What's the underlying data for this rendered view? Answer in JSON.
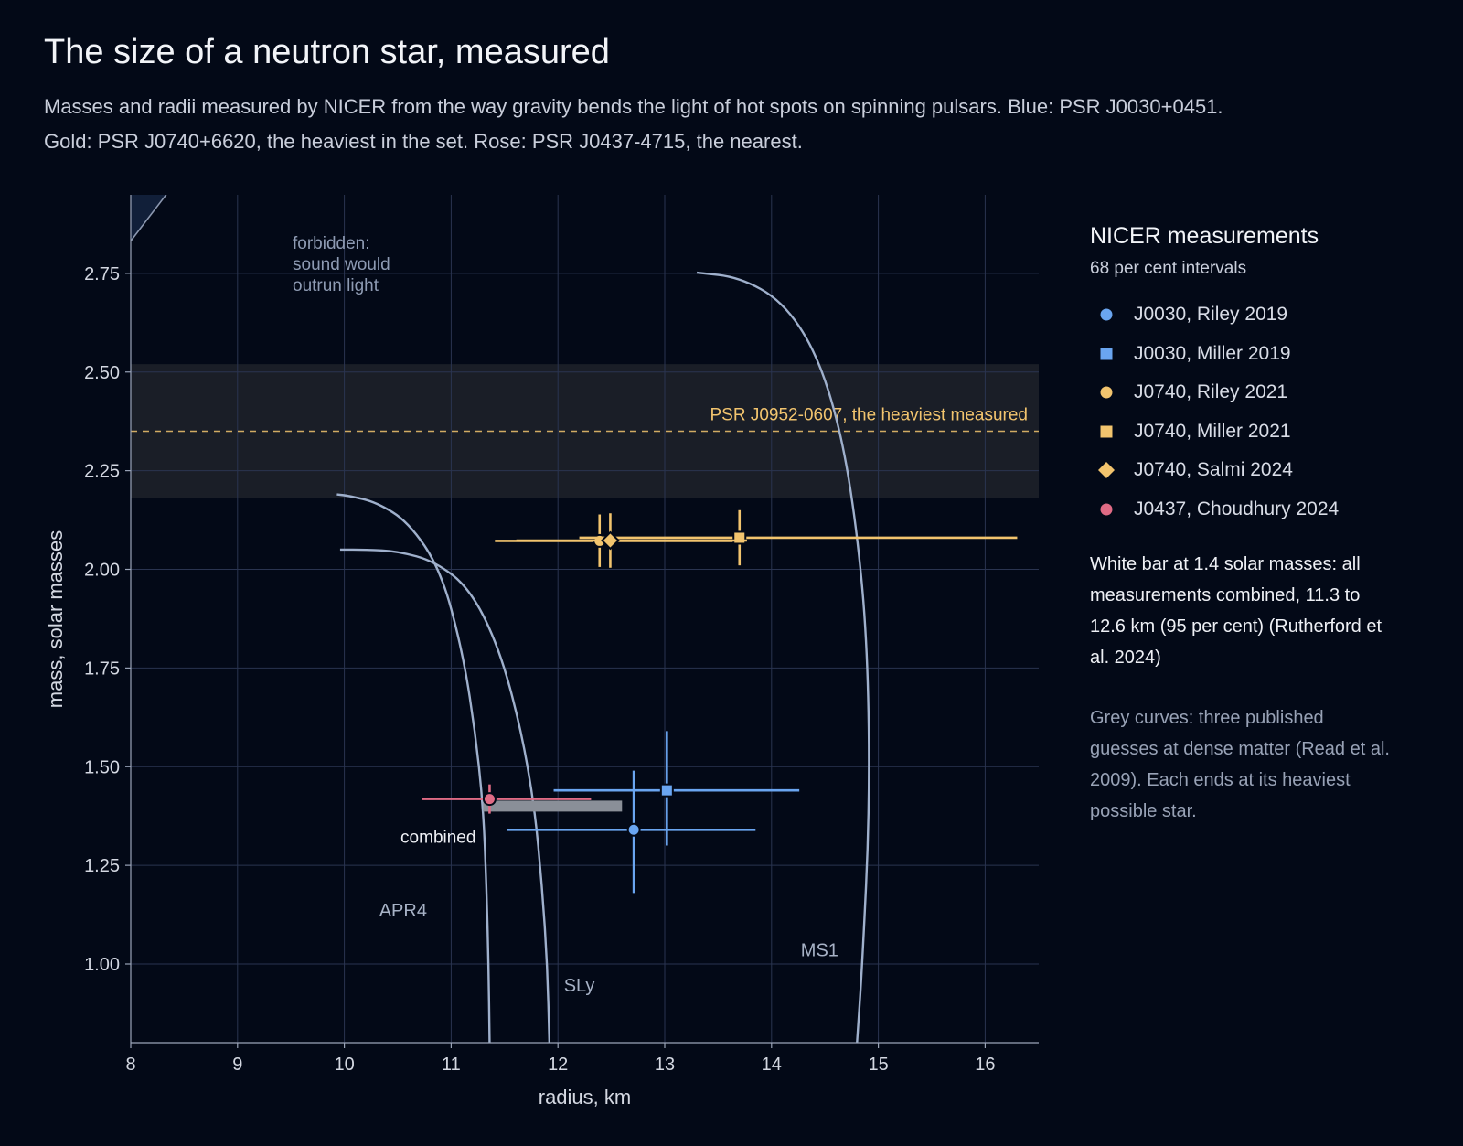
{
  "title": "The size of a neutron star, measured",
  "subtitle": {
    "line1": "Masses and radii measured by NICER from the way gravity bends the light of hot spots on spinning pulsars. Blue: PSR J0030+0451.",
    "line2": "Gold: PSR J0740+6620, the heaviest in the set. Rose: PSR J0437-4715, the nearest."
  },
  "colors": {
    "background": "#030917",
    "blue": "#6aa5f0",
    "gold": "#f2c46e",
    "rose": "#e06b85",
    "curve": "#9fb0cc",
    "forbidden": "#14233f",
    "band": "#1a1e27",
    "combined": "#8a8f98"
  },
  "legend": {
    "title": "NICER measurements",
    "subtitle": "68 per cent intervals",
    "items": [
      {
        "label": "J0030, Riley 2019",
        "marker": "circle",
        "color": "#6aa5f0"
      },
      {
        "label": "J0030, Miller 2019",
        "marker": "square",
        "color": "#6aa5f0"
      },
      {
        "label": "J0740, Riley 2021",
        "marker": "circle",
        "color": "#f2c46e"
      },
      {
        "label": "J0740, Miller 2021",
        "marker": "square",
        "color": "#f2c46e"
      },
      {
        "label": "J0740, Salmi 2024",
        "marker": "diamond",
        "color": "#f2c46e"
      },
      {
        "label": "J0437, Choudhury 2024",
        "marker": "circle",
        "color": "#e06b85"
      }
    ],
    "note_combined": "White bar at 1.4 solar masses: all measurements combined, 11.3 to 12.6 km (95 per cent) (Rutherford et al. 2024)",
    "note_curves": "Grey curves: three published guesses at dense matter (Read et al. 2009). Each ends at its heaviest possible star."
  },
  "chart_data": {
    "type": "scatter",
    "xlabel": "radius, km",
    "ylabel": "mass, solar masses",
    "xlim": [
      8,
      16.5
    ],
    "ylim": [
      0.8,
      2.95
    ],
    "xticks": [
      8,
      9,
      10,
      11,
      12,
      13,
      14,
      15,
      16
    ],
    "yticks": [
      1.0,
      1.25,
      1.5,
      1.75,
      2.0,
      2.25,
      2.5,
      2.75
    ],
    "grid": true,
    "points": [
      {
        "name": "J0030, Riley 2019",
        "marker": "circle",
        "color": "#6aa5f0",
        "x": 12.71,
        "x_lo": 11.52,
        "x_hi": 13.85,
        "y": 1.34,
        "y_lo": 1.18,
        "y_hi": 1.49
      },
      {
        "name": "J0030, Miller 2019",
        "marker": "square",
        "color": "#6aa5f0",
        "x": 13.02,
        "x_lo": 11.96,
        "x_hi": 14.26,
        "y": 1.44,
        "y_lo": 1.3,
        "y_hi": 1.59
      },
      {
        "name": "J0740, Riley 2021",
        "marker": "circle",
        "color": "#f2c46e",
        "x": 12.39,
        "x_lo": 11.41,
        "x_hi": 13.69,
        "y": 2.072,
        "y_lo": 2.006,
        "y_hi": 2.139
      },
      {
        "name": "J0740, Miller 2021",
        "marker": "square",
        "color": "#f2c46e",
        "x": 13.7,
        "x_lo": 12.2,
        "x_hi": 16.3,
        "y": 2.08,
        "y_lo": 2.01,
        "y_hi": 2.15
      },
      {
        "name": "J0740, Salmi 2024",
        "marker": "diamond",
        "color": "#f2c46e",
        "x": 12.49,
        "x_lo": 11.61,
        "x_hi": 13.77,
        "y": 2.073,
        "y_lo": 2.004,
        "y_hi": 2.142
      },
      {
        "name": "J0437, Choudhury 2024",
        "marker": "circle",
        "color": "#e06b85",
        "x": 11.36,
        "x_lo": 10.73,
        "x_hi": 12.31,
        "y": 1.418,
        "y_lo": 1.381,
        "y_hi": 1.455
      }
    ],
    "combined": {
      "label": "combined",
      "x_lo": 11.3,
      "x_hi": 12.6,
      "y": 1.4
    },
    "heaviest": {
      "label": "PSR J0952-0607, the heaviest measured",
      "y": 2.35,
      "y_lo": 2.18,
      "y_hi": 2.52
    },
    "forbidden": {
      "label_lines": [
        "forbidden:",
        "sound would",
        "outrun light"
      ],
      "slope": 0.354
    },
    "curves": [
      {
        "name": "APR4",
        "label_at": [
          10.55,
          1.12
        ],
        "points": [
          [
            11.36,
            0.8
          ],
          [
            11.35,
            1.0
          ],
          [
            11.33,
            1.2
          ],
          [
            11.3,
            1.4
          ],
          [
            11.22,
            1.6
          ],
          [
            11.1,
            1.8
          ],
          [
            10.9,
            2.0
          ],
          [
            10.6,
            2.12
          ],
          [
            10.3,
            2.17
          ],
          [
            10.05,
            2.186
          ],
          [
            9.93,
            2.19
          ]
        ]
      },
      {
        "name": "SLy",
        "label_at": [
          12.2,
          0.93
        ],
        "points": [
          [
            11.92,
            0.8
          ],
          [
            11.9,
            1.0
          ],
          [
            11.85,
            1.2
          ],
          [
            11.78,
            1.4
          ],
          [
            11.65,
            1.6
          ],
          [
            11.45,
            1.8
          ],
          [
            11.18,
            1.95
          ],
          [
            10.85,
            2.02
          ],
          [
            10.5,
            2.046
          ],
          [
            10.2,
            2.05
          ],
          [
            9.96,
            2.05
          ]
        ]
      },
      {
        "name": "MS1",
        "label_at": [
          14.45,
          1.02
        ],
        "points": [
          [
            14.8,
            0.8
          ],
          [
            14.85,
            1.0
          ],
          [
            14.92,
            1.4
          ],
          [
            14.9,
            1.8
          ],
          [
            14.8,
            2.1
          ],
          [
            14.65,
            2.35
          ],
          [
            14.42,
            2.55
          ],
          [
            14.1,
            2.68
          ],
          [
            13.7,
            2.74
          ],
          [
            13.3,
            2.752
          ]
        ]
      }
    ]
  }
}
